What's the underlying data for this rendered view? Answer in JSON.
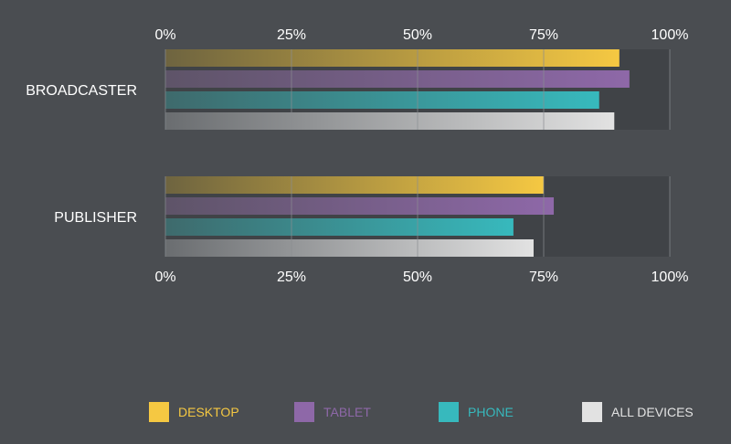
{
  "chart_data": {
    "type": "bar",
    "orientation": "horizontal",
    "categories": [
      "BROADCASTER",
      "PUBLISHER"
    ],
    "xlim": [
      0,
      100
    ],
    "ticks": [
      "0%",
      "25%",
      "50%",
      "75%",
      "100%"
    ],
    "grid": true,
    "legend_placement": "bottom",
    "series": [
      {
        "name": "DESKTOP",
        "color": "#f5c842",
        "values": [
          90,
          75
        ]
      },
      {
        "name": "TABLET",
        "color": "#8e68a8",
        "values": [
          92,
          77
        ]
      },
      {
        "name": "PHONE",
        "color": "#37b9bd",
        "values": [
          86,
          69
        ]
      },
      {
        "name": "ALL DEVICES",
        "color": "#e2e2e2",
        "values": [
          89,
          73
        ]
      }
    ]
  },
  "colors": {
    "background": "#4a4d51",
    "track": "#404347",
    "grid": "#8a8d91"
  }
}
